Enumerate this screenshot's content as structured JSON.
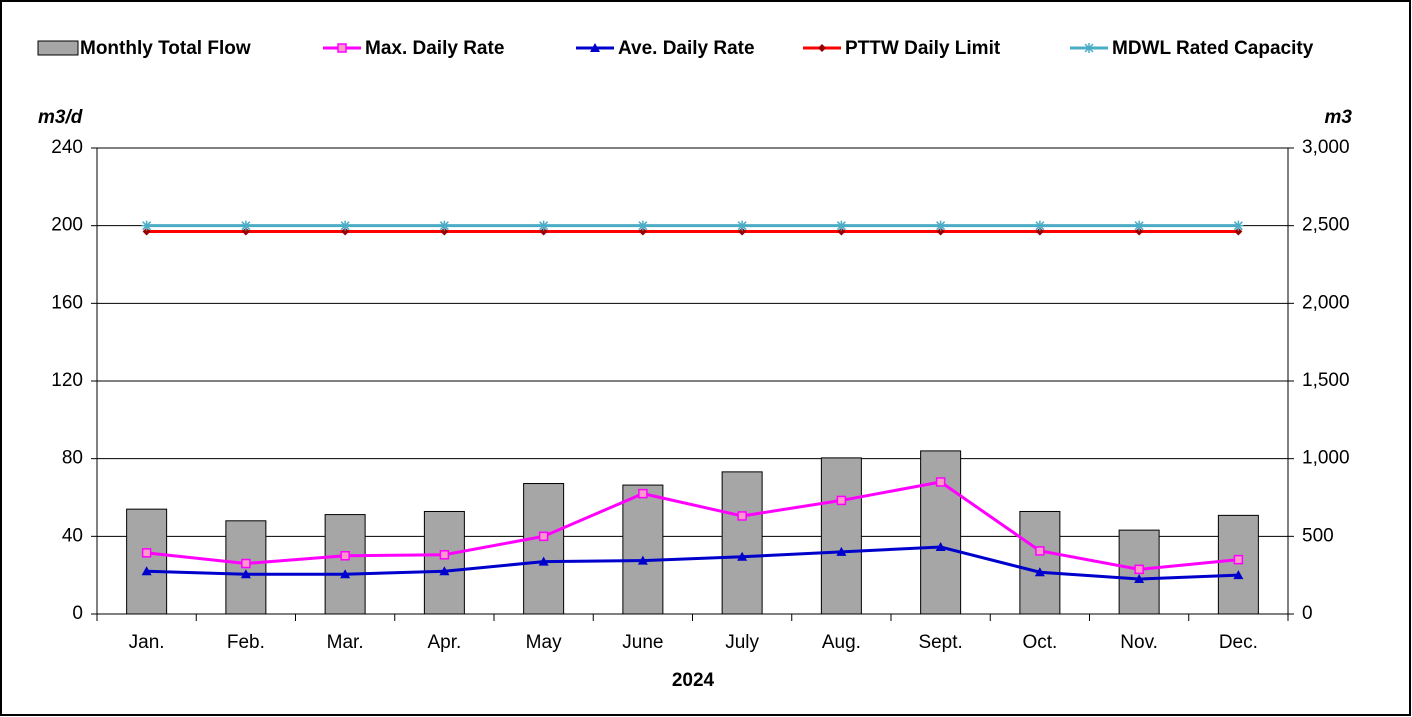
{
  "chart_data": {
    "type": "bar-line",
    "categories": [
      "Jan.",
      "Feb.",
      "Mar.",
      "Apr.",
      "May",
      "June",
      "July",
      "Aug.",
      "Sept.",
      "Oct.",
      "Nov.",
      "Dec."
    ],
    "x_label": "2024",
    "y_label": "m3/d",
    "y2_label": "m3",
    "ylim": [
      0,
      240
    ],
    "yticks": [
      0,
      40,
      80,
      120,
      160,
      200,
      240
    ],
    "y2lim": [
      0,
      3000
    ],
    "y2ticks": [
      0,
      500,
      {
        "value": 1000,
        "label": "1,000"
      },
      {
        "value": 1500,
        "label": "1,500"
      },
      {
        "value": 2000,
        "label": "2,000"
      },
      {
        "value": 2500,
        "label": "2,500"
      },
      {
        "value": 3000,
        "label": "3,000"
      }
    ],
    "grid": true,
    "series": [
      {
        "name": "Monthly Total Flow",
        "kind": "bar",
        "axis": "y2",
        "color": "#a6a6a6",
        "values": [
          675,
          600,
          640,
          660,
          840,
          830,
          915,
          1005,
          1050,
          660,
          540,
          635
        ]
      },
      {
        "name": "Max. Daily Rate",
        "kind": "line",
        "marker": "square",
        "color": "#ff00ff",
        "values": [
          31.5,
          26,
          30,
          30.5,
          40,
          62,
          50.5,
          58.5,
          68,
          32.5,
          23,
          28
        ]
      },
      {
        "name": "Ave. Daily Rate",
        "kind": "line",
        "marker": "triangle",
        "color": "#0000cc",
        "values": [
          22,
          20.5,
          20.5,
          22,
          27,
          27.5,
          29.5,
          32,
          34.5,
          21.5,
          18,
          20
        ]
      },
      {
        "name": "PTTW Daily Limit",
        "kind": "line",
        "marker": "diamond",
        "color": "#ff0000",
        "values": [
          197,
          197,
          197,
          197,
          197,
          197,
          197,
          197,
          197,
          197,
          197,
          197
        ]
      },
      {
        "name": "MDWL Rated Capacity",
        "kind": "line",
        "marker": "star",
        "color": "#4bacc6",
        "values": [
          200,
          200,
          200,
          200,
          200,
          200,
          200,
          200,
          200,
          200,
          200,
          200
        ]
      }
    ]
  }
}
